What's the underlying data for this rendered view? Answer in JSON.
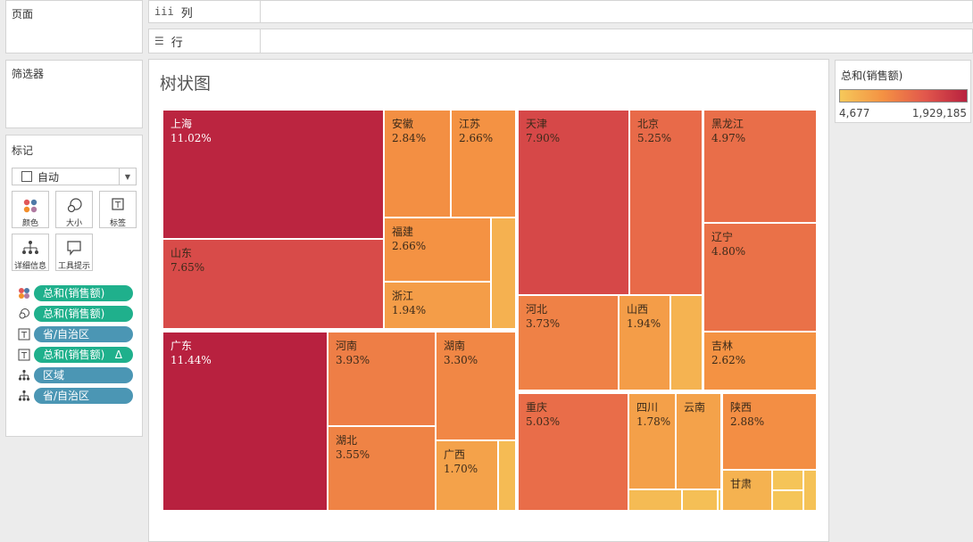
{
  "pages_panel": {
    "title": "页面"
  },
  "filters_panel": {
    "title": "筛选器"
  },
  "columns_shelf": {
    "icon": "iii",
    "label": "列"
  },
  "rows_shelf": {
    "icon": "☰",
    "label": "行"
  },
  "marks": {
    "title": "标记",
    "mark_type": "自动",
    "buttons": {
      "color": "颜色",
      "size": "大小",
      "label": "标签",
      "detail": "详细信息",
      "tooltip": "工具提示"
    },
    "pills": [
      {
        "text": "总和(销售额)",
        "icon": "color-dots-icon",
        "kind": "measure"
      },
      {
        "text": "总和(销售额)",
        "icon": "size-circles-icon",
        "kind": "measure"
      },
      {
        "text": "省/自治区",
        "icon": "label-text-icon",
        "kind": "dimension"
      },
      {
        "text": "总和(销售额)",
        "icon": "label-text-icon",
        "kind": "measure",
        "suffix": "Δ"
      },
      {
        "text": "区域",
        "icon": "detail-hierarchy-icon",
        "kind": "dimension"
      },
      {
        "text": "省/自治区",
        "icon": "detail-hierarchy-icon",
        "kind": "dimension"
      }
    ]
  },
  "legend": {
    "title": "总和(销售额)",
    "min": "4,677",
    "max": "1,929,185"
  },
  "colors": {
    "measure_pill": "#1fb08c",
    "dimension_pill": "#4b96b4",
    "scale_low": "#f5c85a",
    "scale_high": "#b8213f"
  },
  "chart_data": {
    "type": "treemap",
    "title": "树状图",
    "measure": "总和(销售额)",
    "size_and_color_by": "sales_share",
    "group_by": "区域",
    "regions": [
      {
        "provinces": [
          {
            "name": "上海",
            "share": 11.02,
            "label": "11.02%"
          },
          {
            "name": "山东",
            "share": 7.65,
            "label": "7.65%"
          },
          {
            "name": "安徽",
            "share": 2.84,
            "label": "2.84%"
          },
          {
            "name": "江苏",
            "share": 2.66,
            "label": "2.66%"
          },
          {
            "name": "福建",
            "share": 2.66,
            "label": "2.66%"
          },
          {
            "name": "浙江",
            "share": 1.94,
            "label": "1.94%"
          },
          {
            "name": "",
            "share": 0.9,
            "label": ""
          }
        ]
      },
      {
        "provinces": [
          {
            "name": "广东",
            "share": 11.44,
            "label": "11.44%"
          },
          {
            "name": "河南",
            "share": 3.93,
            "label": "3.93%"
          },
          {
            "name": "湖北",
            "share": 3.55,
            "label": "3.55%"
          },
          {
            "name": "湖南",
            "share": 3.3,
            "label": "3.30%"
          },
          {
            "name": "广西",
            "share": 1.7,
            "label": "1.70%"
          },
          {
            "name": "",
            "share": 0.45,
            "label": ""
          }
        ]
      },
      {
        "provinces": [
          {
            "name": "天津",
            "share": 7.9,
            "label": "7.90%"
          },
          {
            "name": "北京",
            "share": 5.25,
            "label": "5.25%"
          },
          {
            "name": "河北",
            "share": 3.73,
            "label": "3.73%"
          },
          {
            "name": "山西",
            "share": 1.94,
            "label": "1.94%"
          },
          {
            "name": "",
            "share": 0.8,
            "label": ""
          }
        ]
      },
      {
        "provinces": [
          {
            "name": "黑龙江",
            "share": 4.97,
            "label": "4.97%"
          },
          {
            "name": "辽宁",
            "share": 4.8,
            "label": "4.80%"
          },
          {
            "name": "吉林",
            "share": 2.62,
            "label": "2.62%"
          }
        ]
      },
      {
        "provinces": [
          {
            "name": "重庆",
            "share": 5.03,
            "label": "5.03%"
          },
          {
            "name": "四川",
            "share": 1.78,
            "label": "1.78%"
          },
          {
            "name": "云南",
            "share": 1.68,
            "label": ""
          },
          {
            "name": "",
            "share": 0.45,
            "label": ""
          },
          {
            "name": "",
            "share": 0.3,
            "label": ""
          },
          {
            "name": "",
            "share": 0.05,
            "label": ""
          }
        ]
      },
      {
        "provinces": [
          {
            "name": "陕西",
            "share": 2.88,
            "label": "2.88%"
          },
          {
            "name": "甘肃",
            "share": 0.85,
            "label": ""
          },
          {
            "name": "",
            "share": 0.12,
            "label": ""
          },
          {
            "name": "",
            "share": 0.1,
            "label": ""
          },
          {
            "name": "",
            "share": 0.2,
            "label": ""
          }
        ]
      }
    ]
  }
}
